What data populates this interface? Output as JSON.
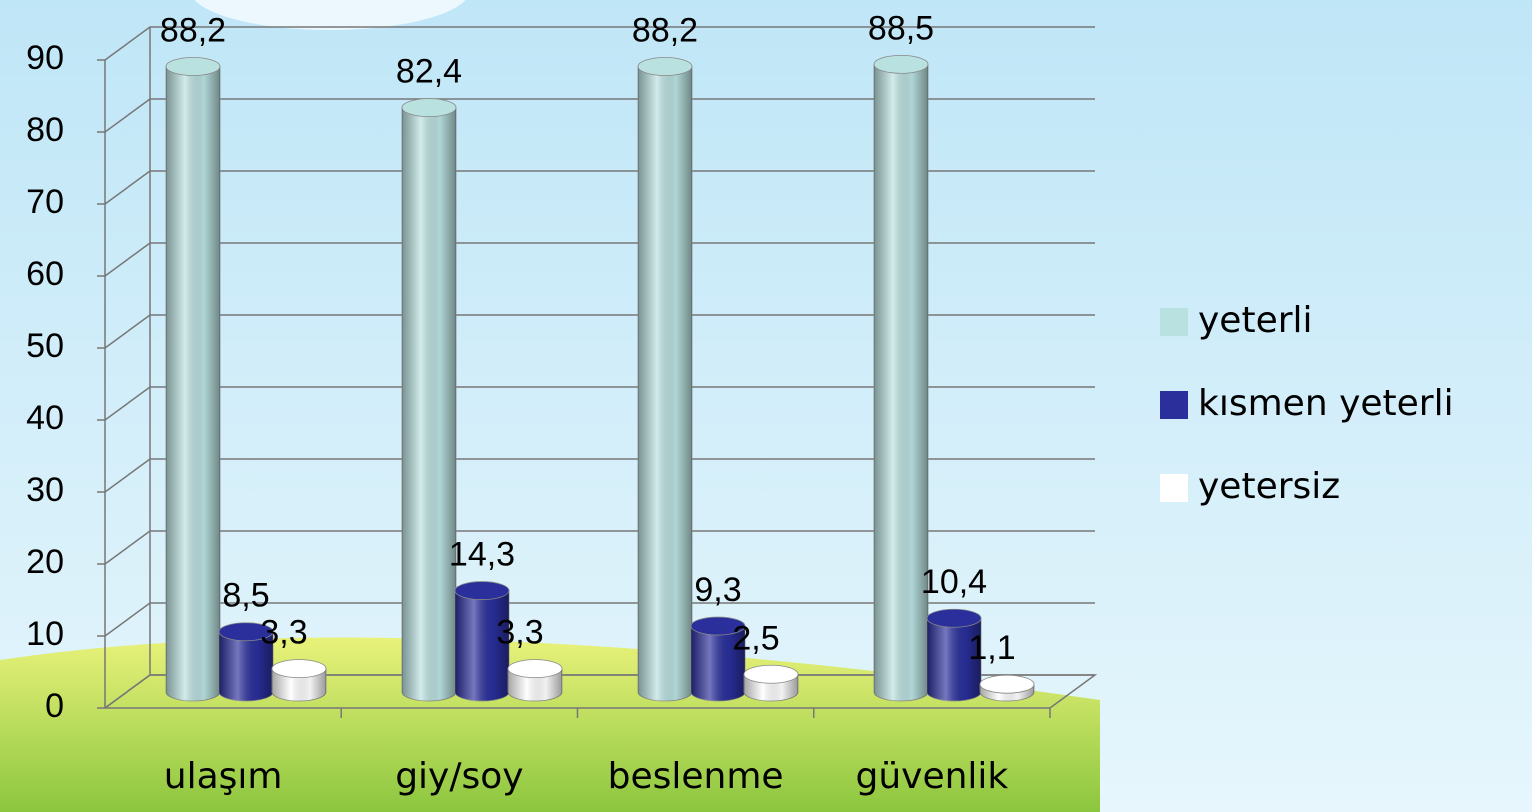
{
  "chart_data": {
    "type": "bar3d",
    "categories": [
      "ulaşım",
      "giy/soy",
      "beslenme",
      "güvenlik"
    ],
    "series": [
      {
        "name": "yeterli",
        "color": "#b9e1e0",
        "values": [
          88.2,
          82.4,
          88.2,
          88.5
        ],
        "value_labels": [
          "88,2",
          "82,4",
          "88,2",
          "88,5"
        ]
      },
      {
        "name": "kısmen yeterli",
        "color": "#2a2f9c",
        "values": [
          8.5,
          14.3,
          9.3,
          10.4
        ],
        "value_labels": [
          "8,5",
          "14,3",
          "9,3",
          "10,4"
        ]
      },
      {
        "name": "yetersiz",
        "color": "#ffffff",
        "values": [
          3.3,
          3.3,
          2.5,
          1.1
        ],
        "value_labels": [
          "3,3",
          "3,3",
          "2,5",
          "1,1"
        ]
      }
    ],
    "ylim": [
      0,
      90
    ],
    "yticks": [
      0,
      10,
      20,
      30,
      40,
      50,
      60,
      70,
      80,
      90
    ],
    "grid": true,
    "legend": "right"
  }
}
